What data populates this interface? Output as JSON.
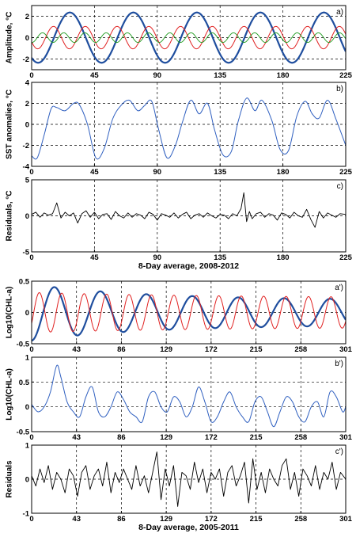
{
  "chart_data": [
    {
      "panel": "a)",
      "type": "line",
      "ylabel": "Amplitude, °C",
      "xlim": [
        0,
        225
      ],
      "ylim": [
        -3,
        3
      ],
      "xticks": [
        "0",
        "45",
        "90",
        "135",
        "180",
        "225"
      ],
      "yticks": [
        "-2",
        "0",
        "2"
      ],
      "ytick_values": [
        -2,
        0,
        2
      ],
      "show_xtick_labels": true,
      "grid": true,
      "series": [
        {
          "color": "#1f4e9e",
          "kind": "sine",
          "amplitude": 2.35,
          "period": 45.5,
          "phase": 16,
          "width": 2.2
        },
        {
          "color": "#e02020",
          "kind": "sine",
          "amplitude": 1.05,
          "period": 22.75,
          "phase": 10,
          "width": 1
        },
        {
          "color": "#1a9a1a",
          "kind": "sine",
          "amplitude": 0.45,
          "period": 15.2,
          "phase": 4,
          "width": 0.9
        }
      ]
    },
    {
      "panel": "b)",
      "type": "line",
      "ylabel": "SST anomalies, °C",
      "xlim": [
        0,
        225
      ],
      "ylim": [
        -4,
        4
      ],
      "xticks": [
        "0",
        "45",
        "90",
        "135",
        "180",
        "225"
      ],
      "yticks": [
        "-4",
        "-2",
        "0",
        "2",
        "4"
      ],
      "ytick_values": [
        -4,
        -2,
        0,
        2,
        4
      ],
      "show_xtick_labels": true,
      "grid": true,
      "series": [
        {
          "color": "#3060c0",
          "kind": "points",
          "width": 1,
          "x": [
            0,
            4,
            9,
            14,
            18,
            24,
            30,
            34,
            40,
            46,
            52,
            58,
            64,
            70,
            76,
            81,
            86,
            91,
            97,
            103,
            108,
            114,
            120,
            126,
            131,
            137,
            143,
            148,
            154,
            160,
            165,
            172,
            178,
            184,
            190,
            196,
            201,
            206,
            212,
            218,
            225
          ],
          "y": [
            -3.0,
            -3.2,
            -1.0,
            1.5,
            1.6,
            1.3,
            2.0,
            1.9,
            0.0,
            -3.2,
            -2.3,
            0.5,
            1.8,
            2.3,
            1.3,
            1.8,
            2.2,
            -0.5,
            -3.2,
            -2.0,
            0.2,
            2.3,
            1.0,
            2.0,
            -0.5,
            -2.9,
            -2.6,
            0.3,
            2.5,
            1.3,
            2.3,
            0.4,
            -2.4,
            -2.5,
            0.8,
            2.2,
            1.0,
            0.6,
            2.3,
            0.5,
            -2.0
          ]
        }
      ]
    },
    {
      "panel": "c)",
      "type": "line",
      "ylabel": "Residuals, °C",
      "xlabel": "8-Day average, 2008-2012",
      "xlim": [
        0,
        225
      ],
      "ylim": [
        -5,
        5
      ],
      "xticks": [
        "0",
        "45",
        "90",
        "135",
        "180",
        "225"
      ],
      "yticks": [
        "-5",
        "0",
        "5"
      ],
      "ytick_values": [
        -5,
        0,
        5
      ],
      "show_xtick_labels": true,
      "grid": true,
      "series": [
        {
          "color": "#000000",
          "kind": "points",
          "width": 0.9,
          "x": [
            0,
            3,
            6,
            9,
            12,
            15,
            18,
            21,
            24,
            27,
            30,
            33,
            36,
            39,
            42,
            45,
            48,
            51,
            54,
            57,
            60,
            63,
            66,
            69,
            72,
            75,
            78,
            81,
            84,
            87,
            90,
            93,
            96,
            99,
            102,
            105,
            108,
            111,
            114,
            117,
            120,
            123,
            126,
            129,
            132,
            135,
            138,
            141,
            144,
            147,
            150,
            152,
            154,
            156,
            158,
            161,
            164,
            167,
            170,
            173,
            176,
            179,
            182,
            185,
            188,
            191,
            194,
            197,
            200,
            203,
            206,
            209,
            212,
            215,
            218,
            221,
            225
          ],
          "y": [
            0.2,
            0.5,
            -0.2,
            0.4,
            0.1,
            0.3,
            1.8,
            -0.3,
            0.5,
            0.0,
            0.4,
            -1.0,
            0.3,
            0.7,
            -0.2,
            0.5,
            -0.4,
            0.2,
            0.3,
            -0.5,
            0.6,
            0.0,
            -0.3,
            0.4,
            -0.2,
            0.3,
            0.1,
            -0.4,
            0.5,
            0.2,
            -0.6,
            0.3,
            0.1,
            -0.2,
            0.4,
            -0.3,
            0.2,
            0.5,
            -0.4,
            0.1,
            0.3,
            -0.2,
            0.4,
            0.0,
            -0.3,
            0.2,
            0.1,
            -0.4,
            0.3,
            0.0,
            1.0,
            3.2,
            -0.8,
            0.6,
            -0.4,
            0.3,
            0.5,
            -0.2,
            0.3,
            0.1,
            -0.6,
            0.4,
            0.2,
            -0.3,
            0.5,
            0.0,
            -0.2,
            0.9,
            -0.5,
            -1.6,
            0.6,
            -0.3,
            0.4,
            0.1,
            -0.2,
            0.3,
            0.2
          ]
        }
      ]
    },
    {
      "panel": "a')",
      "type": "line",
      "ylabel": "Log10(CHL-a)",
      "xlim": [
        0,
        301
      ],
      "ylim": [
        -0.5,
        0.5
      ],
      "xticks": [
        "0",
        "43",
        "86",
        "129",
        "172",
        "215",
        "258",
        "301"
      ],
      "yticks": [
        "-0.5",
        "0",
        "0.5"
      ],
      "ytick_values": [
        -0.5,
        0,
        0.5
      ],
      "show_xtick_labels": true,
      "grid": true,
      "series": [
        {
          "color": "#1f4e9e",
          "kind": "damped",
          "a0": 0.45,
          "a1": 0.2,
          "tau": 110,
          "period": 44,
          "phase": 11,
          "width": 2.2
        },
        {
          "color": "#e02020",
          "kind": "damped",
          "a0": 0.32,
          "a1": 0.23,
          "tau": 200,
          "period": 21.5,
          "phase": 2,
          "width": 1
        }
      ]
    },
    {
      "panel": "b')",
      "type": "line",
      "ylabel": "Log10(CHL-a)",
      "xlim": [
        0,
        301
      ],
      "ylim": [
        -0.5,
        1
      ],
      "xticks": [
        "0",
        "43",
        "86",
        "129",
        "172",
        "215",
        "258",
        "301"
      ],
      "yticks": [
        "-0.5",
        "0",
        "0.5",
        "1"
      ],
      "ytick_values": [
        -0.5,
        0,
        0.5,
        1
      ],
      "show_xtick_labels": true,
      "grid": true,
      "series": [
        {
          "color": "#3060c0",
          "kind": "points",
          "width": 1,
          "x": [
            0,
            6,
            12,
            18,
            24,
            28,
            34,
            40,
            46,
            52,
            58,
            64,
            70,
            76,
            82,
            88,
            94,
            100,
            106,
            112,
            118,
            124,
            130,
            136,
            142,
            148,
            154,
            160,
            166,
            172,
            178,
            184,
            190,
            196,
            202,
            208,
            214,
            220,
            226,
            232,
            238,
            244,
            250,
            256,
            262,
            268,
            274,
            280,
            286,
            292,
            298,
            301
          ],
          "y": [
            0.05,
            -0.1,
            0.0,
            0.3,
            0.83,
            0.6,
            0.1,
            -0.1,
            -0.2,
            0.2,
            0.4,
            -0.1,
            -0.2,
            0.0,
            0.3,
            0.15,
            -0.1,
            -0.2,
            -0.3,
            0.2,
            0.3,
            0.0,
            -0.1,
            0.2,
            0.1,
            -0.2,
            0.0,
            0.4,
            0.1,
            -0.3,
            -0.2,
            0.1,
            0.3,
            0.0,
            -0.2,
            -0.3,
            0.1,
            0.2,
            -0.1,
            -0.4,
            -0.1,
            0.2,
            0.1,
            -0.2,
            -0.3,
            0.0,
            0.1,
            -0.2,
            0.3,
            0.2,
            -0.1,
            0.0
          ]
        }
      ]
    },
    {
      "panel": "c')",
      "type": "line",
      "ylabel": "Residuals",
      "xlabel": "8-Day average, 2005-2011",
      "xlim": [
        0,
        301
      ],
      "ylim": [
        -1,
        1
      ],
      "xticks": [
        "0",
        "43",
        "86",
        "129",
        "172",
        "215",
        "258",
        "301"
      ],
      "yticks": [
        "-1",
        "0",
        "1"
      ],
      "ytick_values": [
        -1,
        0,
        1
      ],
      "show_xtick_labels": true,
      "grid": true,
      "series": [
        {
          "color": "#000000",
          "kind": "points",
          "width": 0.9,
          "x": [
            0,
            4,
            8,
            12,
            16,
            20,
            24,
            28,
            32,
            36,
            40,
            44,
            48,
            52,
            56,
            60,
            64,
            68,
            72,
            76,
            80,
            84,
            88,
            92,
            96,
            100,
            104,
            108,
            112,
            116,
            120,
            124,
            128,
            132,
            136,
            140,
            144,
            148,
            152,
            156,
            160,
            164,
            168,
            172,
            176,
            180,
            184,
            188,
            192,
            196,
            200,
            204,
            208,
            212,
            216,
            220,
            224,
            228,
            232,
            236,
            240,
            244,
            248,
            252,
            256,
            260,
            264,
            268,
            272,
            276,
            280,
            284,
            288,
            292,
            296,
            301
          ],
          "y": [
            0.1,
            -0.2,
            0.3,
            -0.1,
            0.4,
            -0.3,
            0.2,
            0.0,
            -0.4,
            0.3,
            0.1,
            -0.5,
            0.2,
            0.4,
            -0.3,
            0.1,
            0.3,
            -0.2,
            0.5,
            -0.4,
            0.2,
            -0.1,
            0.3,
            0.0,
            -0.3,
            0.4,
            -0.2,
            0.1,
            -0.4,
            0.2,
            0.8,
            -0.6,
            0.3,
            -0.2,
            0.4,
            -0.8,
            0.2,
            0.1,
            -0.3,
            0.5,
            -0.1,
            0.3,
            -0.4,
            0.2,
            0.0,
            0.3,
            -0.5,
            0.2,
            0.4,
            -0.2,
            0.1,
            0.5,
            -0.7,
            0.6,
            -0.3,
            0.2,
            -0.4,
            0.3,
            0.0,
            -0.2,
            0.4,
            0.6,
            -0.3,
            0.2,
            -0.5,
            0.3,
            0.1,
            -0.2,
            0.4,
            -0.3,
            0.2,
            0.0,
            0.5,
            -0.3,
            0.2,
            0.0
          ]
        }
      ]
    }
  ]
}
